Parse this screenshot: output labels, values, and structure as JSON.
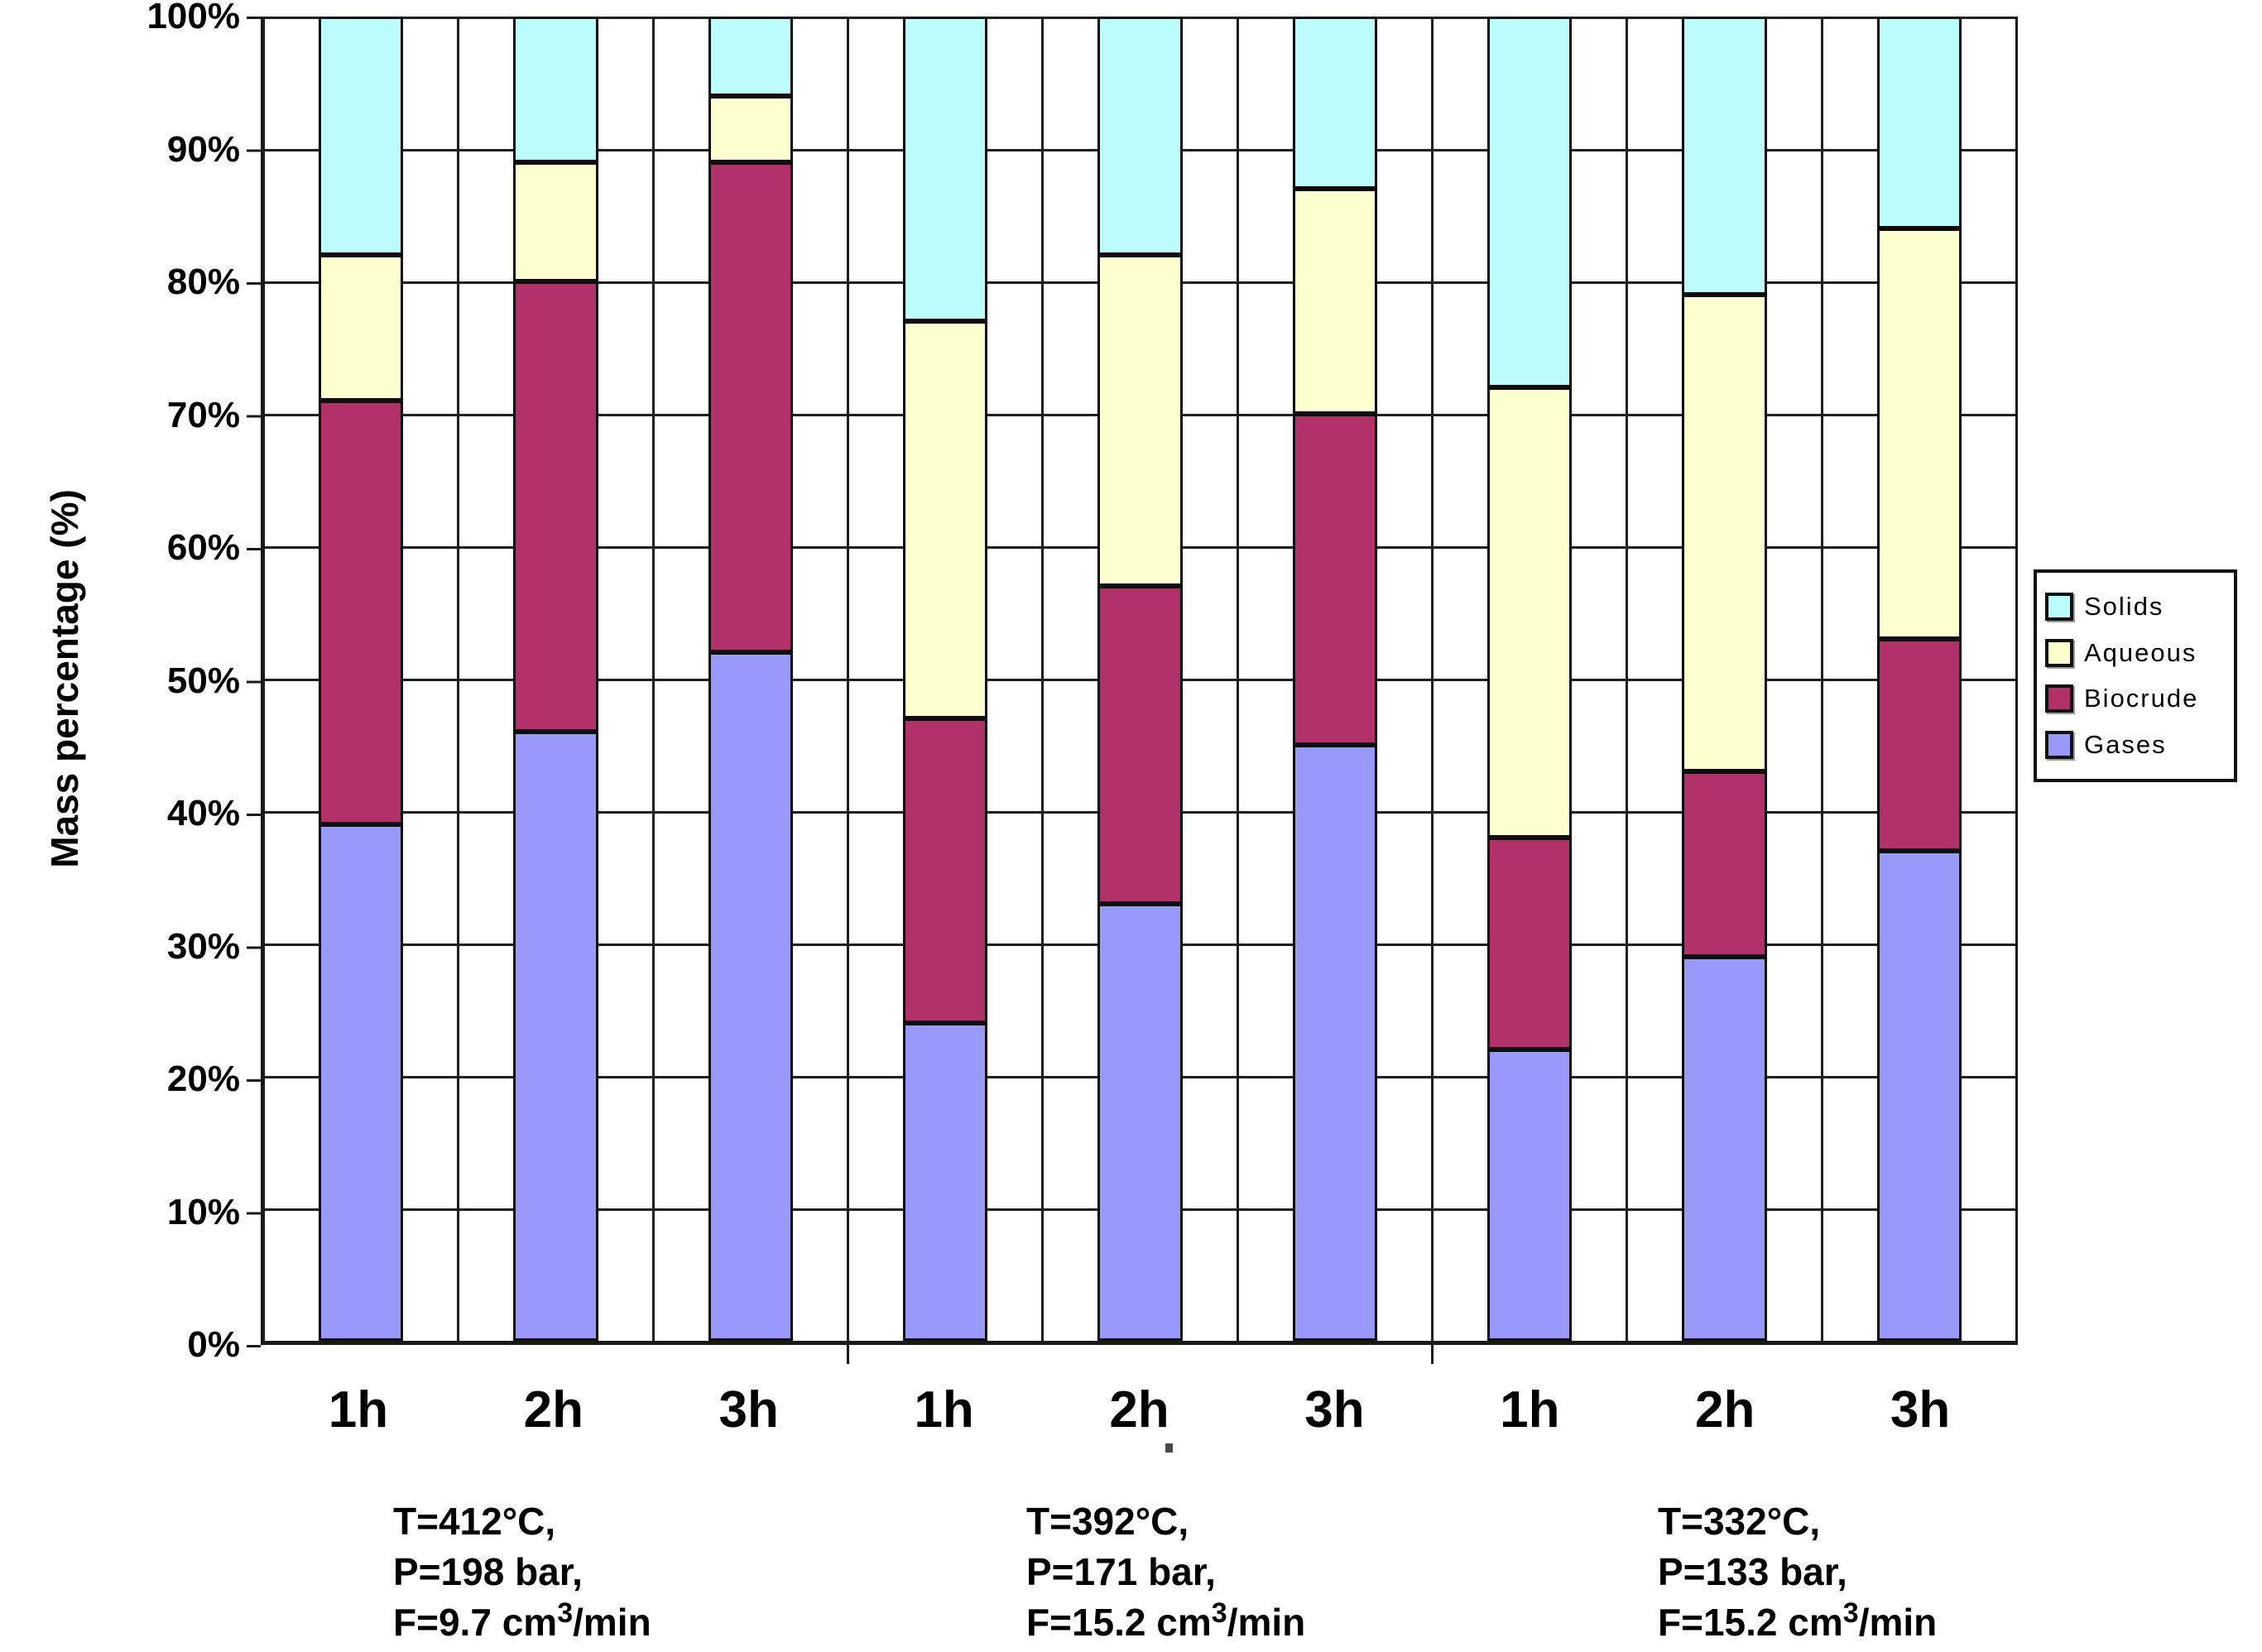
{
  "axis": {
    "ylabel": "Mass percentage (%)"
  },
  "legend": {
    "items": [
      {
        "label": "Solids",
        "color": "#BCFCFC"
      },
      {
        "label": "Aqueous",
        "color": "#FFFFCE"
      },
      {
        "label": "Biocrude",
        "color": "#B13067"
      },
      {
        "label": "Gases",
        "color": "#9999FA"
      }
    ]
  },
  "conditions": [
    {
      "line1": "T=412°C,",
      "line2": "P=198 bar,",
      "f_pre": "F=9.7 cm",
      "f_sup": "3",
      "f_post": "/min"
    },
    {
      "line1": "T=392°C,",
      "line2": "P=171 bar,",
      "f_pre": "F=15.2 cm",
      "f_sup": "3",
      "f_post": "/min"
    },
    {
      "line1": "T=332°C,",
      "line2": "P=133 bar,",
      "f_pre": "F=15.2 cm",
      "f_sup": "3",
      "f_post": "/min"
    }
  ],
  "chart_data": {
    "type": "bar",
    "stacked": true,
    "title": "",
    "xlabel": "",
    "ylabel": "Mass percentage (%)",
    "ylim": [
      0,
      100
    ],
    "grid": true,
    "legend_position": "right",
    "yticks": [
      "0%",
      "10%",
      "20%",
      "30%",
      "40%",
      "50%",
      "60%",
      "70%",
      "80%",
      "90%",
      "100%"
    ],
    "categories": [
      "1h",
      "2h",
      "3h",
      "1h",
      "2h",
      "3h",
      "1h",
      "2h",
      "3h"
    ],
    "group_conditions": [
      "T=412°C, P=198 bar, F=9.7 cm3/min",
      "T=392°C, P=171 bar, F=15.2 cm3/min",
      "T=332°C, P=133 bar, F=15.2 cm3/min"
    ],
    "series": [
      {
        "name": "Gases",
        "color": "#9999FA",
        "values": [
          39,
          46,
          52,
          24,
          33,
          45,
          22,
          29,
          37
        ]
      },
      {
        "name": "Biocrude",
        "color": "#B13067",
        "values": [
          32,
          34,
          37,
          23,
          24,
          25,
          16,
          14,
          16
        ]
      },
      {
        "name": "Aqueous",
        "color": "#FFFFCE",
        "values": [
          11,
          9,
          5,
          30,
          25,
          17,
          34,
          36,
          31
        ]
      },
      {
        "name": "Solids",
        "color": "#BCFCFC",
        "values": [
          18,
          11,
          6,
          23,
          18,
          13,
          28,
          21,
          16
        ]
      }
    ]
  }
}
